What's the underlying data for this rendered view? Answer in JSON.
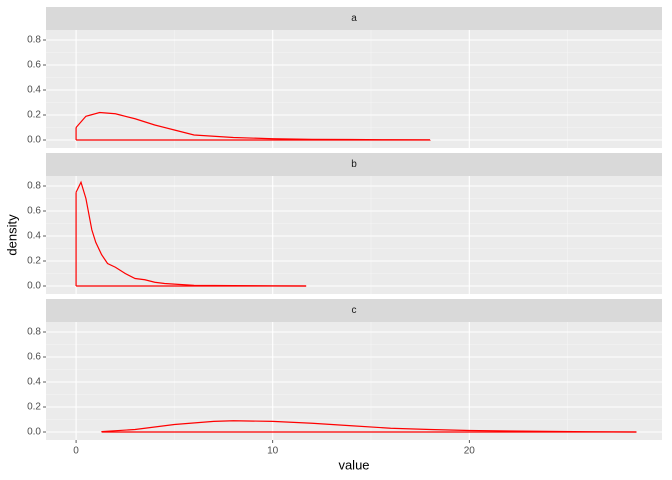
{
  "chart_data": {
    "type": "density",
    "xlabel": "value",
    "ylabel": "density",
    "color": "#ff0000",
    "xlim": [
      -1.53,
      29.8
    ],
    "xticks": [
      0,
      10,
      20
    ],
    "ylim": [
      -0.064,
      0.88
    ],
    "yticks": [
      {
        "value": 0,
        "label": "0.0"
      },
      0.2,
      0.4,
      0.6,
      0.8
    ],
    "grid": true,
    "facets": [
      {
        "label": "a",
        "x": [
          0,
          0.5,
          1.2,
          2,
          3,
          4,
          5,
          6,
          7,
          8,
          10,
          12,
          14,
          16,
          18
        ],
        "values": [
          0.1,
          0.19,
          0.22,
          0.21,
          0.17,
          0.12,
          0.08,
          0.04,
          0.03,
          0.02,
          0.01,
          0.005,
          0.004,
          0.002,
          0.001
        ]
      },
      {
        "label": "b",
        "x": [
          0,
          0.25,
          0.5,
          0.8,
          1,
          1.3,
          1.6,
          2,
          2.5,
          3,
          3.5,
          4,
          4.5,
          5,
          6,
          8,
          10,
          11.7
        ],
        "values": [
          0.75,
          0.83,
          0.7,
          0.45,
          0.35,
          0.25,
          0.18,
          0.15,
          0.1,
          0.06,
          0.05,
          0.03,
          0.02,
          0.015,
          0.005,
          0.003,
          0.001,
          0
        ]
      },
      {
        "label": "c",
        "x": [
          1.3,
          3,
          5,
          7,
          8,
          10,
          12,
          14,
          16,
          18,
          20,
          22,
          24,
          26,
          28.5
        ],
        "values": [
          0.003,
          0.02,
          0.06,
          0.085,
          0.09,
          0.085,
          0.07,
          0.05,
          0.03,
          0.02,
          0.012,
          0.008,
          0.005,
          0.002,
          0
        ]
      }
    ]
  }
}
